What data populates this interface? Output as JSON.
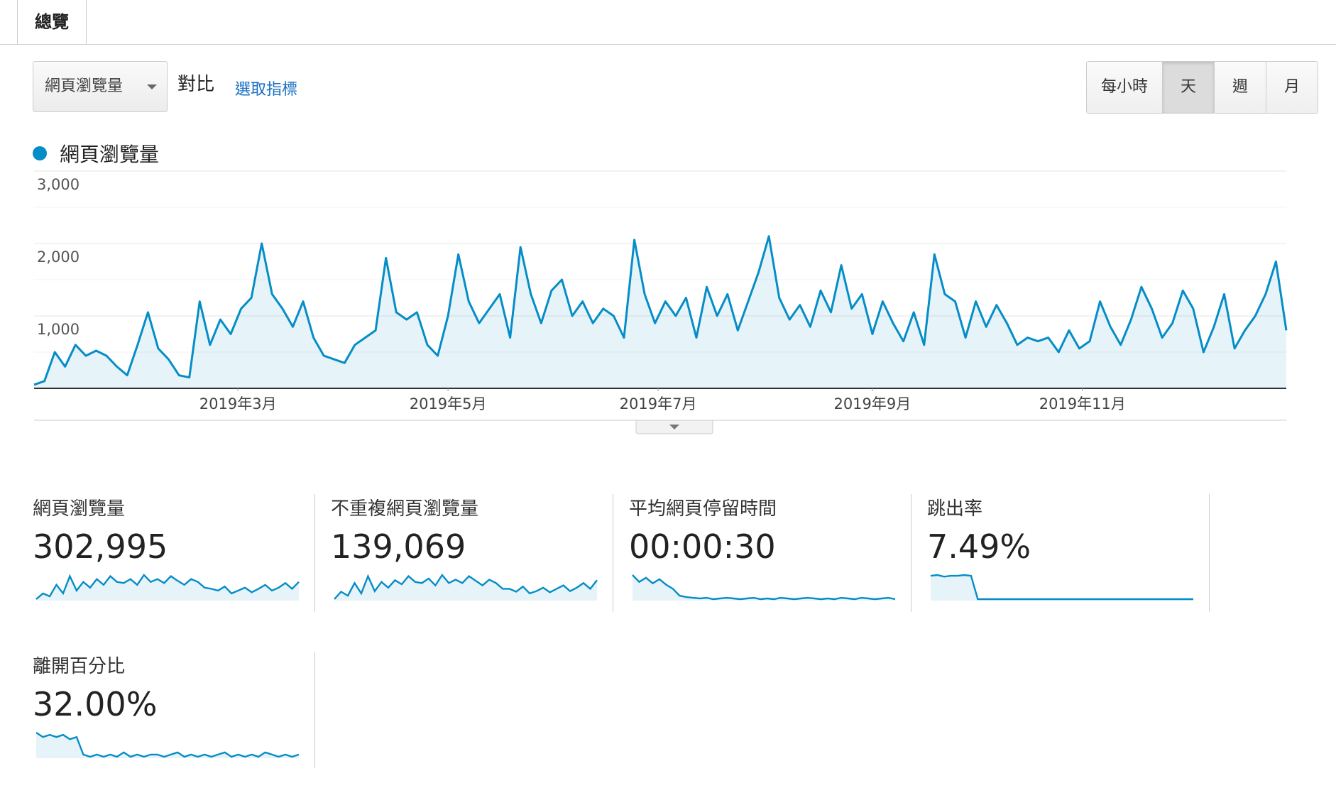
{
  "tabs": [
    "總覽"
  ],
  "toolbar": {
    "metric_select": "網頁瀏覽量",
    "compare": "對比",
    "select_metric": "選取指標",
    "granularity": [
      "每小時",
      "天",
      "週",
      "月"
    ],
    "active_granularity_index": 1
  },
  "chart_data": {
    "type": "line",
    "area": true,
    "series": [
      {
        "name": "網頁瀏覽量",
        "color": "#058dc7",
        "values": [
          50,
          100,
          500,
          300,
          600,
          450,
          520,
          450,
          300,
          180,
          600,
          1050,
          550,
          400,
          180,
          150,
          1200,
          600,
          950,
          750,
          1100,
          1250,
          2000,
          1300,
          1100,
          850,
          1200,
          700,
          450,
          400,
          350,
          600,
          700,
          800,
          1800,
          1050,
          950,
          1050,
          600,
          450,
          1000,
          1850,
          1200,
          900,
          1100,
          1300,
          700,
          1950,
          1300,
          900,
          1350,
          1500,
          1000,
          1200,
          900,
          1100,
          1000,
          700,
          2050,
          1300,
          900,
          1200,
          1000,
          1250,
          700,
          1400,
          1000,
          1300,
          800,
          1200,
          1600,
          2100,
          1250,
          950,
          1150,
          850,
          1350,
          1050,
          1700,
          1100,
          1300,
          750,
          1200,
          900,
          650,
          1050,
          600,
          1850,
          1300,
          1200,
          700,
          1200,
          850,
          1150,
          900,
          600,
          700,
          650,
          700,
          500,
          800,
          550,
          650,
          1200,
          850,
          600,
          950,
          1400,
          1100,
          700,
          900,
          1350,
          1100,
          500,
          850,
          1300,
          550,
          800,
          1000,
          1300,
          1750,
          800
        ]
      }
    ],
    "xlim": [
      0,
      121
    ],
    "xticks": [
      {
        "value": 19.7,
        "label": "2019年3月"
      },
      {
        "value": 40,
        "label": "2019年5月"
      },
      {
        "value": 60.3,
        "label": "2019年7月"
      },
      {
        "value": 81,
        "label": "2019年9月"
      },
      {
        "value": 101.3,
        "label": "2019年11月"
      }
    ],
    "ylim": [
      0,
      3000
    ],
    "yticks": [
      {
        "value": 1000,
        "label": "1,000"
      },
      {
        "value": 2000,
        "label": "2,000"
      },
      {
        "value": 3000,
        "label": "3,000"
      }
    ],
    "minor_yticks": [
      500,
      1500,
      2500
    ],
    "grid": true
  },
  "scorecards": [
    {
      "label": "網頁瀏覽量",
      "value": "302,995",
      "sparkline": [
        20,
        30,
        25,
        45,
        30,
        60,
        35,
        50,
        40,
        55,
        45,
        60,
        50,
        48,
        55,
        45,
        62,
        50,
        55,
        48,
        60,
        52,
        45,
        55,
        50,
        40,
        38,
        35,
        42,
        30,
        35,
        40,
        32,
        38,
        45,
        35,
        40,
        48,
        38,
        50
      ]
    },
    {
      "label": "不重複網頁瀏覽量",
      "value": "139,069",
      "sparkline": [
        22,
        35,
        28,
        50,
        32,
        62,
        36,
        52,
        42,
        55,
        48,
        62,
        52,
        50,
        58,
        46,
        64,
        50,
        56,
        50,
        62,
        54,
        46,
        56,
        50,
        40,
        40,
        35,
        44,
        32,
        36,
        42,
        34,
        40,
        46,
        36,
        42,
        50,
        40,
        55
      ]
    },
    {
      "label": "平均網頁停留時間",
      "value": "00:00:30",
      "sparkline": [
        60,
        50,
        56,
        48,
        54,
        46,
        40,
        30,
        28,
        27,
        26,
        27,
        25,
        26,
        27,
        26,
        25,
        26,
        27,
        25,
        26,
        25,
        27,
        26,
        25,
        26,
        27,
        26,
        25,
        26,
        25,
        27,
        26,
        25,
        27,
        26,
        25,
        26,
        27,
        25
      ]
    },
    {
      "label": "跳出率",
      "value": "7.49%",
      "sparkline": [
        30,
        31,
        29,
        30,
        30,
        31,
        30,
        1,
        1,
        1,
        1,
        1,
        1,
        1,
        1,
        1,
        1,
        1,
        1,
        1,
        1,
        1,
        1,
        1,
        1,
        1,
        1,
        1,
        1,
        1,
        1,
        1,
        1,
        1,
        1,
        1,
        1,
        1,
        1,
        1
      ]
    },
    {
      "label": "離開百分比",
      "value": "32.00%",
      "sparkline": [
        45,
        43,
        44,
        43,
        44,
        42,
        43,
        35,
        34,
        35,
        34,
        35,
        34,
        36,
        34,
        35,
        34,
        35,
        35,
        34,
        35,
        36,
        34,
        35,
        34,
        35,
        34,
        35,
        36,
        34,
        35,
        34,
        35,
        34,
        36,
        35,
        34,
        35,
        34,
        35
      ]
    }
  ]
}
